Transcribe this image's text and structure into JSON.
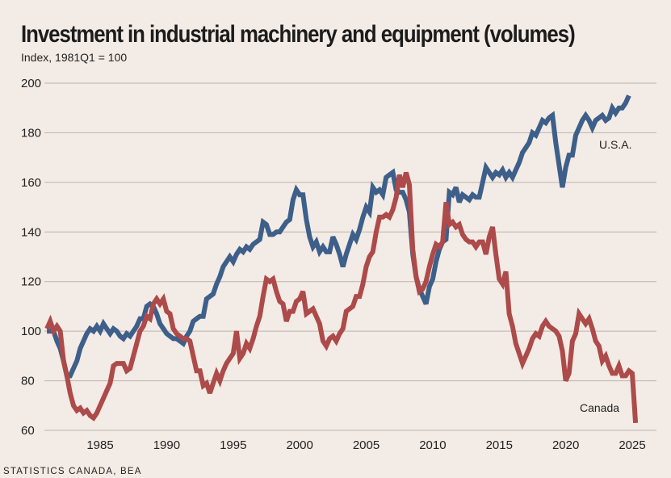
{
  "chart_data": {
    "type": "line",
    "title": "Investment in industrial machinery and equipment (volumes)",
    "subtitle": "Index, 1981Q1 = 100",
    "source": "STATISTICS CANADA, BEA",
    "xlabel": "",
    "ylabel": "",
    "frequency": "quarterly",
    "x_start": "1981Q1",
    "xlim": [
      1981,
      2026
    ],
    "ylim": [
      60,
      200
    ],
    "yticks": [
      "60",
      "80",
      "100",
      "120",
      "140",
      "160",
      "180",
      "200"
    ],
    "ytick_values": [
      60,
      80,
      100,
      120,
      140,
      160,
      180,
      200
    ],
    "xticks": [
      "1985",
      "1990",
      "1995",
      "2000",
      "2005",
      "2010",
      "2015",
      "2020",
      "2025"
    ],
    "xtick_values": [
      1985,
      1990,
      1995,
      2000,
      2005,
      2010,
      2015,
      2020,
      2025
    ],
    "grid": true,
    "legend": "inline labels at line ends",
    "series": [
      {
        "name": "U.S.A.",
        "color": "#3d5f8a",
        "values": [
          100,
          100,
          100,
          96,
          93,
          88,
          82,
          82,
          85,
          88,
          93,
          96,
          99,
          101,
          100,
          102,
          100,
          103,
          101,
          99,
          101,
          100,
          98,
          97,
          99,
          98,
          100,
          102,
          105,
          105,
          110,
          111,
          110,
          107,
          103,
          101,
          99,
          98,
          97,
          97,
          96,
          95,
          98,
          100,
          104,
          105,
          106,
          106,
          113,
          114,
          115,
          119,
          122,
          126,
          128,
          130,
          128,
          131,
          133,
          132,
          134,
          133,
          135,
          136,
          137,
          144,
          143,
          139,
          139,
          140,
          140,
          142,
          144,
          145,
          153,
          157,
          155,
          155,
          145,
          138,
          134,
          136,
          132,
          134,
          132,
          132,
          138,
          135,
          131,
          126,
          131,
          135,
          139,
          137,
          141,
          146,
          150,
          148,
          158,
          156,
          157,
          155,
          162,
          163,
          164,
          157,
          156,
          156,
          153,
          148,
          131,
          122,
          117,
          114,
          111,
          118,
          121,
          128,
          133,
          136,
          137,
          156,
          155,
          158,
          152,
          155,
          154,
          153,
          155,
          154,
          154,
          160,
          166,
          164,
          162,
          164,
          163,
          165,
          162,
          164,
          162,
          165,
          168,
          172,
          174,
          176,
          180,
          179,
          182,
          185,
          184,
          186,
          187,
          176,
          167,
          158,
          166,
          171,
          171,
          179,
          182,
          185,
          187,
          185,
          182,
          185,
          186,
          187,
          185,
          186,
          190,
          188,
          190,
          190,
          192,
          195
        ]
      },
      {
        "name": "Canada",
        "color": "#ad4a4a",
        "values": [
          101,
          104,
          100,
          102,
          100,
          88,
          82,
          75,
          70,
          68,
          69,
          67,
          68,
          66,
          65,
          67,
          70,
          73,
          76,
          79,
          86,
          87,
          87,
          87,
          84,
          85,
          90,
          95,
          100,
          102,
          106,
          105,
          111,
          113,
          111,
          113,
          108,
          107,
          101,
          99,
          98,
          97,
          97,
          96,
          90,
          84,
          84,
          78,
          79,
          75,
          79,
          83,
          80,
          84,
          87,
          89,
          91,
          100,
          89,
          91,
          95,
          93,
          97,
          102,
          106,
          114,
          121,
          120,
          121,
          116,
          112,
          111,
          104,
          108,
          108,
          112,
          113,
          116,
          107,
          108,
          109,
          106,
          103,
          96,
          94,
          97,
          98,
          96,
          99,
          101,
          108,
          109,
          110,
          114,
          114,
          119,
          126,
          130,
          132,
          140,
          146,
          146,
          147,
          146,
          149,
          154,
          163,
          158,
          164,
          159,
          133,
          122,
          116,
          117,
          120,
          126,
          131,
          135,
          134,
          136,
          152,
          143,
          144,
          142,
          143,
          139,
          137,
          136,
          136,
          134,
          136,
          136,
          131,
          138,
          142,
          131,
          121,
          119,
          124,
          107,
          102,
          95,
          91,
          87,
          90,
          93,
          97,
          99,
          98,
          102,
          104,
          102,
          101,
          100,
          98,
          92,
          80,
          83,
          96,
          99,
          107,
          105,
          103,
          105,
          101,
          96,
          94,
          88,
          90,
          86,
          83,
          83,
          86,
          82,
          82,
          84,
          83,
          63
        ]
      }
    ],
    "annotations": [
      {
        "text": "U.S.A.",
        "series": "U.S.A."
      },
      {
        "text": "Canada",
        "series": "Canada"
      }
    ]
  }
}
